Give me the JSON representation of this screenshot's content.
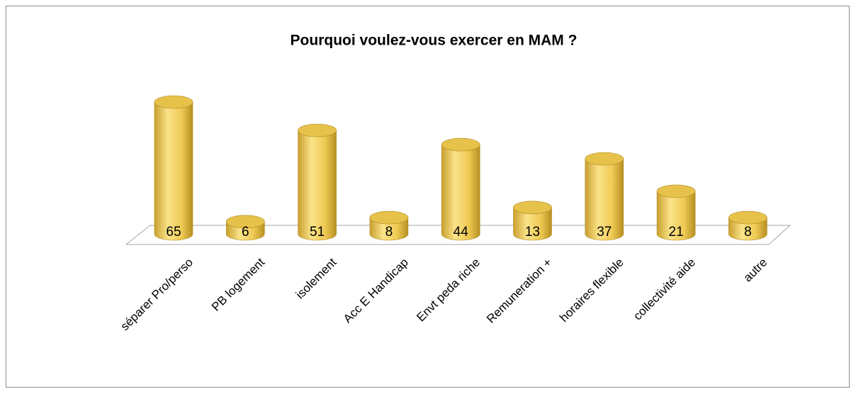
{
  "chart_data": {
    "type": "bar3d",
    "title": "Pourquoi voulez-vous exercer en MAM ?",
    "categories": [
      "séparer Pro/perso",
      "PB logement",
      "isolement",
      "Acc E Handicap",
      "Envt peda riche",
      "Remuneration +",
      "horaires flexible",
      "collectivité aide",
      "autre"
    ],
    "values": [
      65,
      6,
      51,
      8,
      44,
      13,
      37,
      21,
      8
    ],
    "color": "#e6c24a"
  }
}
